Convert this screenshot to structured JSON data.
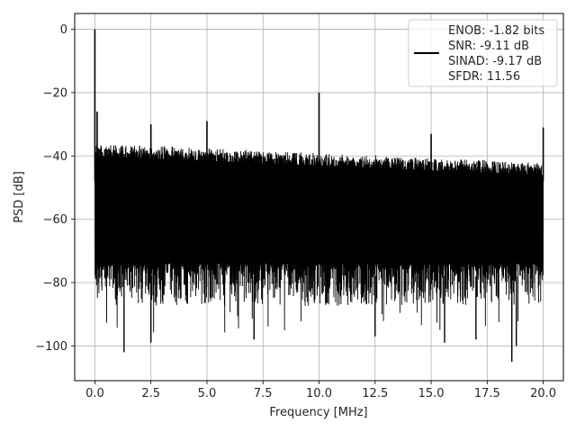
{
  "chart_data": {
    "type": "line",
    "title": "",
    "xlabel": "Frequency [MHz]",
    "ylabel": "PSD [dB]",
    "xlim": [
      -0.9,
      20.9
    ],
    "ylim": [
      -111,
      5
    ],
    "xticks": [
      0.0,
      2.5,
      5.0,
      7.5,
      10.0,
      12.5,
      15.0,
      17.5,
      20.0
    ],
    "xtick_labels": [
      "0.0",
      "2.5",
      "5.0",
      "7.5",
      "10.0",
      "12.5",
      "15.0",
      "17.5",
      "20.0"
    ],
    "yticks": [
      0,
      -20,
      -40,
      -60,
      -80,
      -100
    ],
    "ytick_labels": [
      "0",
      "−20",
      "−40",
      "−60",
      "−80",
      "−100"
    ],
    "grid": true,
    "line_color": "#000000",
    "legend": {
      "placement": "top-right",
      "lines": [
        "ENOB: -1.82 bits",
        "SNR: -9.11 dB",
        "SINAD: -9.17 dB",
        "SFDR: 11.56"
      ]
    },
    "noise_floor": {
      "x_range": [
        0.0,
        20.0
      ],
      "upper_start_dB": -36,
      "upper_end_dB": -42,
      "lower_typical_dB": -78,
      "lower_extreme_dB": -105
    },
    "spurs": [
      {
        "x": 0.0,
        "y": 0
      },
      {
        "x": 0.1,
        "y": -26
      },
      {
        "x": 2.5,
        "y": -30
      },
      {
        "x": 5.0,
        "y": -29
      },
      {
        "x": 10.0,
        "y": -20
      },
      {
        "x": 15.0,
        "y": -33
      },
      {
        "x": 20.0,
        "y": -31
      }
    ],
    "dips": [
      {
        "x": 1.3,
        "y": -102
      },
      {
        "x": 2.5,
        "y": -99
      },
      {
        "x": 7.1,
        "y": -98
      },
      {
        "x": 12.5,
        "y": -97
      },
      {
        "x": 15.6,
        "y": -99
      },
      {
        "x": 17.0,
        "y": -98
      },
      {
        "x": 18.6,
        "y": -105
      },
      {
        "x": 18.8,
        "y": -100
      }
    ]
  }
}
